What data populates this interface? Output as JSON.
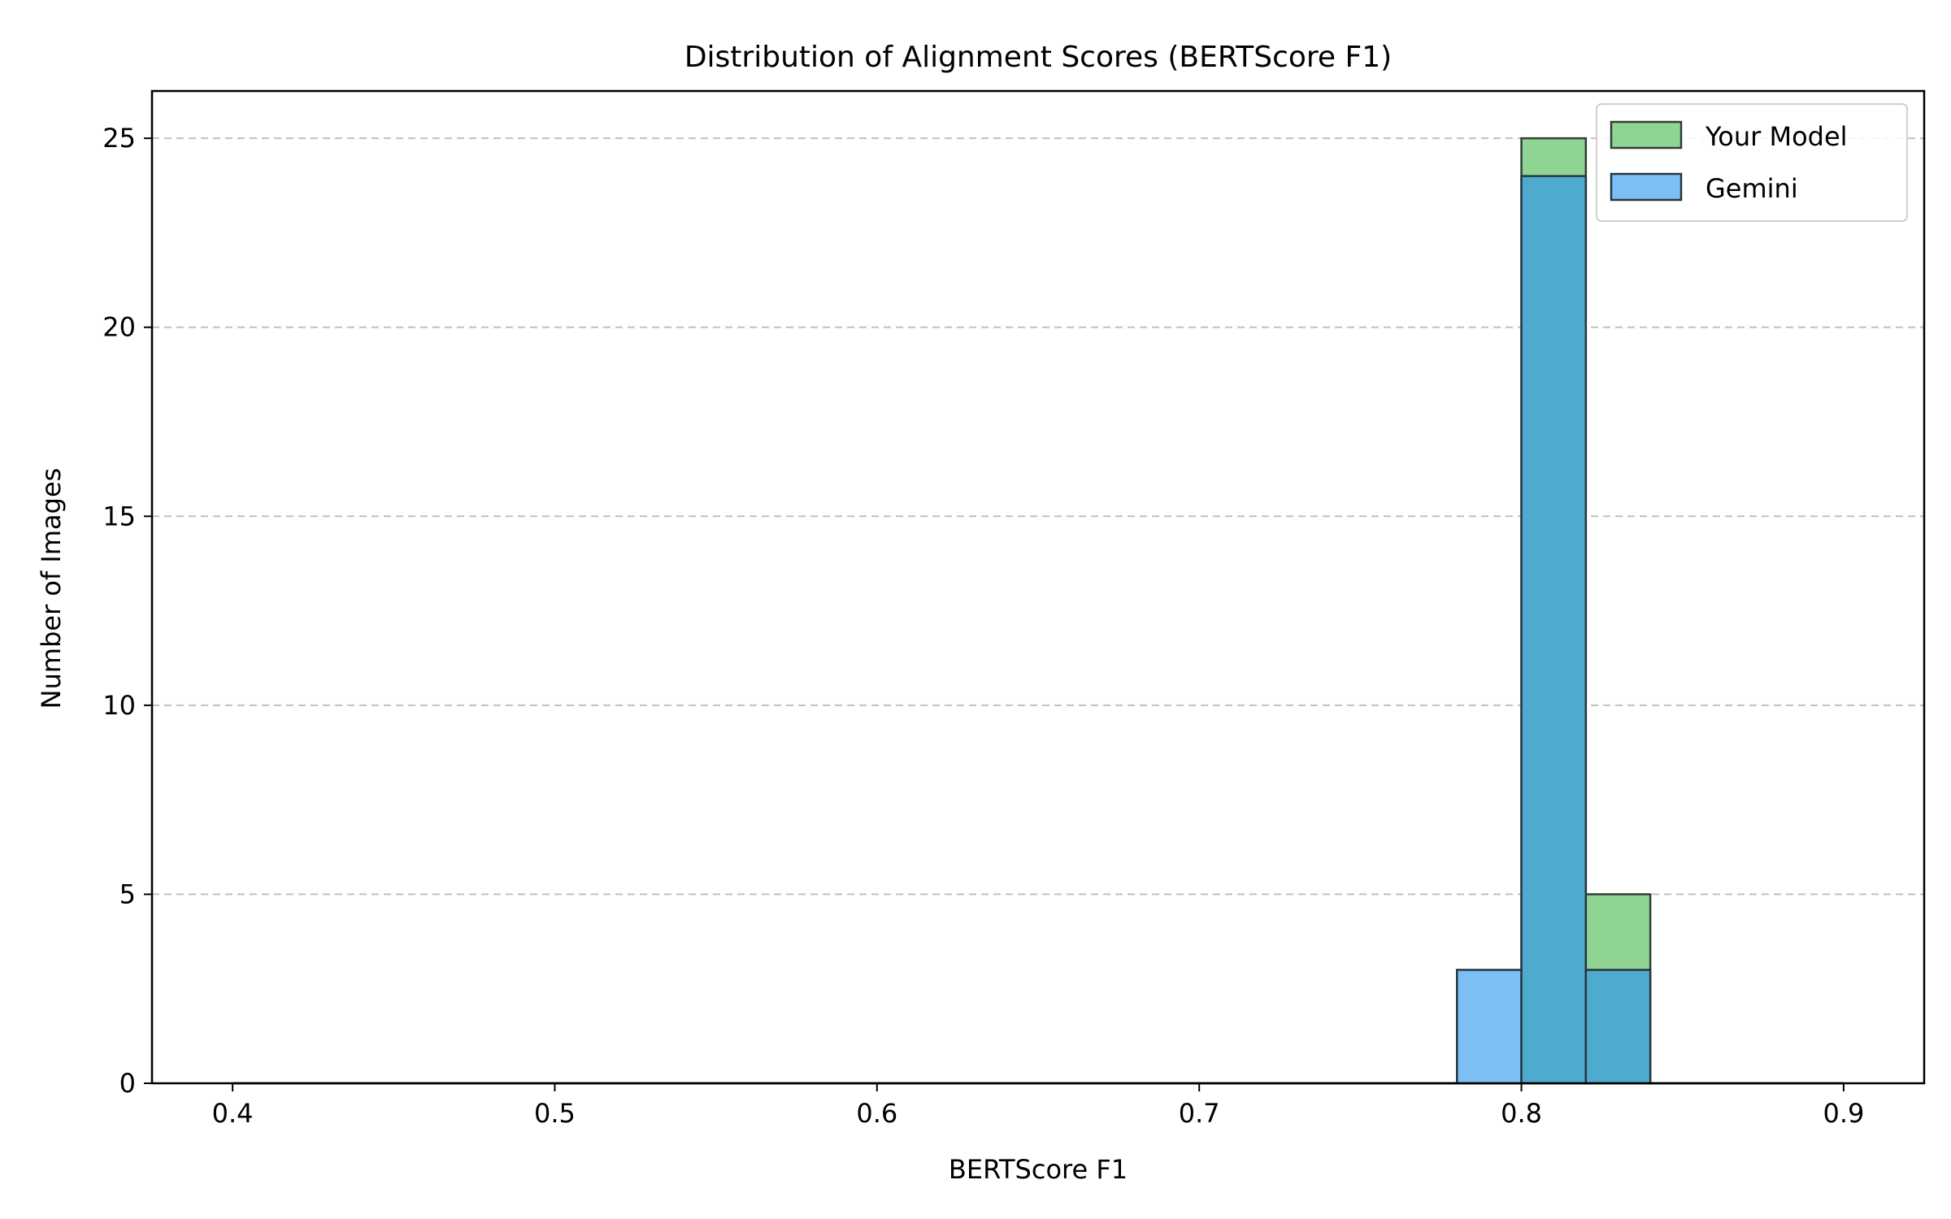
{
  "chart_data": {
    "type": "bar",
    "title": "Distribution of Alignment Scores (BERTScore F1)",
    "xlabel": "BERTScore F1",
    "ylabel": "Number of Images",
    "xlim": [
      0.375,
      0.925
    ],
    "ylim": [
      0,
      26.25
    ],
    "xticks": [
      0.4,
      0.5,
      0.6,
      0.7,
      0.8,
      0.9
    ],
    "xtick_labels": [
      "0.4",
      "0.5",
      "0.6",
      "0.7",
      "0.8",
      "0.9"
    ],
    "yticks": [
      0,
      5,
      10,
      15,
      20,
      25
    ],
    "ytick_labels": [
      "0",
      "5",
      "10",
      "15",
      "20",
      "25"
    ],
    "grid": "y-dashed",
    "legend_position": "top-right",
    "bin_edges": [
      0.4,
      0.42,
      0.44,
      0.46,
      0.48,
      0.5,
      0.52,
      0.54,
      0.56,
      0.58,
      0.6,
      0.62,
      0.64,
      0.66,
      0.68,
      0.7,
      0.72,
      0.74,
      0.76,
      0.78,
      0.8,
      0.82,
      0.84,
      0.86,
      0.88,
      0.9
    ],
    "series": [
      {
        "name": "Your Model",
        "color": "#2ca02c",
        "fill": "#90d494",
        "values": [
          0,
          0,
          0,
          0,
          0,
          0,
          0,
          0,
          0,
          0,
          0,
          0,
          0,
          0,
          0,
          0,
          0,
          0,
          0,
          0,
          25,
          5,
          0,
          0,
          0
        ]
      },
      {
        "name": "Gemini",
        "color": "#1f8ef1",
        "fill": "#7bbff5",
        "values": [
          0,
          0,
          0,
          0,
          0,
          0,
          0,
          0,
          0,
          0,
          0,
          0,
          0,
          0,
          0,
          0,
          0,
          0,
          0,
          3,
          24,
          3,
          0,
          0,
          0
        ]
      }
    ],
    "overlap_fill": "#4eabcf"
  }
}
